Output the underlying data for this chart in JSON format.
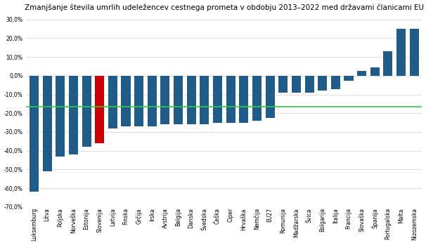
{
  "title": "Zmanjšanje števila umrlih udeležencev cestnega prometa v obdobju 2013–2022 med državami članicami EU",
  "reference_line": -16.5,
  "categories": [
    "Luksemburg",
    "Litva",
    "Poljska",
    "Norveška",
    "Estonija",
    "Slovenija",
    "Latvija",
    "Finska",
    "Grčija",
    "Irska",
    "Avstrija",
    "Belgija",
    "Danska",
    "Švedska",
    "Češka",
    "Ciper",
    "Hrvaška",
    "Nemčija",
    "EU27",
    "Romunija",
    "Madžarska",
    "Švica",
    "Bolgarija",
    "Italija",
    "Francija",
    "Slovaška",
    "Španija",
    "Portugalska",
    "Malta",
    "Nizozemska"
  ],
  "values": [
    -62.0,
    -51.0,
    -43.0,
    -42.0,
    -38.0,
    -36.0,
    -28.0,
    -27.0,
    -27.0,
    -27.0,
    -26.0,
    -26.0,
    -26.0,
    -26.0,
    -25.0,
    -25.0,
    -25.0,
    -24.0,
    -22.5,
    -9.0,
    -9.0,
    -9.0,
    -8.0,
    -7.0,
    -2.5,
    2.5,
    4.5,
    13.0,
    25.0,
    25.0
  ],
  "bar_colors_special": {
    "Slovenija": "#cc0000"
  },
  "bar_color_default": "#1f5c8a",
  "reference_line_color": "#2ecc40",
  "ylim": [
    -70.0,
    32.0
  ],
  "yticks": [
    -70.0,
    -60.0,
    -50.0,
    -40.0,
    -30.0,
    -20.0,
    -10.0,
    0.0,
    10.0,
    20.0,
    30.0
  ],
  "title_fontsize": 7.5,
  "tick_fontsize": 5.5,
  "background_color": "#ffffff"
}
